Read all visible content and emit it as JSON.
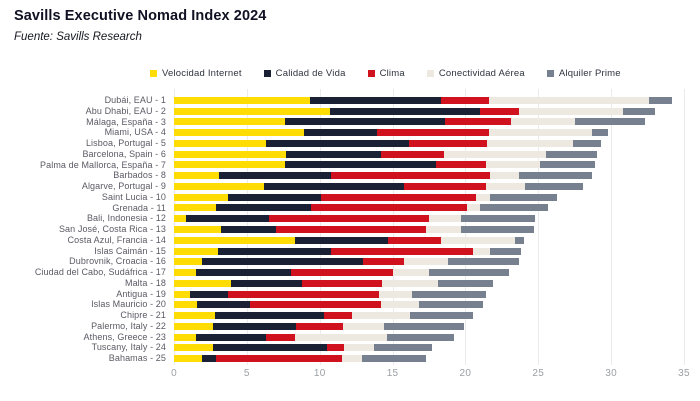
{
  "header": {
    "title": "Savills Executive Nomad Index 2024",
    "source": "Fuente: Savills Research"
  },
  "colors": {
    "background": "#ffffff",
    "gridline": "#ebebeb",
    "title_text": "#101223",
    "axis_tick_text": "#9aa0a6",
    "category_text": "#5a5a64"
  },
  "chart_data": {
    "type": "bar",
    "orientation": "horizontal",
    "stacked": true,
    "title": "Savills Executive Nomad Index 2024",
    "subtitle": "Fuente: Savills Research",
    "xlabel": "",
    "ylabel": "",
    "xlim": [
      0,
      35
    ],
    "x_ticks": [
      0,
      5,
      10,
      15,
      20,
      25,
      30,
      35
    ],
    "grid": true,
    "legend_position": "top",
    "categories": [
      "Dubái, EAU - 1",
      "Abu Dhabi, EAU - 2",
      "Málaga, España - 3",
      "Miami, USA - 4",
      "Lisboa, Portugal - 5",
      "Barcelona, Spain - 6",
      "Palma de Mallorca, España - 7",
      "Barbados - 8",
      "Algarve, Portugal - 9",
      "Saint Lucia - 10",
      "Grenada - 11",
      "Bali, Indonesia - 12",
      "San José, Costa Rica - 13",
      "Costa Azul, Francia - 14",
      "Islas Caimán - 15",
      "Dubrovnik, Croacia - 16",
      "Ciudad del Cabo, Sudáfrica - 17",
      "Malta - 18",
      "Antigua - 19",
      "Islas Mauricio - 20",
      "Chipre - 21",
      "Palermo, Italy - 22",
      "Athens, Greece - 23",
      "Tuscany, Italy - 24",
      "Bahamas - 25"
    ],
    "series": [
      {
        "name": "Velocidad Internet",
        "color": "#FFDD04",
        "values": [
          9.3,
          10.7,
          7.6,
          8.9,
          6.3,
          7.7,
          7.6,
          3.1,
          6.2,
          3.7,
          2.9,
          0.8,
          3.2,
          8.3,
          3.0,
          1.9,
          1.5,
          3.9,
          1.1,
          1.6,
          2.8,
          2.7,
          1.5,
          2.7,
          1.9
        ]
      },
      {
        "name": "Calidad de Vida",
        "color": "#1B2135",
        "values": [
          9.0,
          10.3,
          11.0,
          5.0,
          9.8,
          6.5,
          10.4,
          7.7,
          9.6,
          6.4,
          6.5,
          5.7,
          3.8,
          6.4,
          7.8,
          11.1,
          6.5,
          4.9,
          2.6,
          3.6,
          7.5,
          5.7,
          4.8,
          7.8,
          1.0
        ]
      },
      {
        "name": "Clima",
        "color": "#D0121E",
        "values": [
          3.3,
          2.7,
          4.5,
          7.7,
          5.4,
          4.3,
          3.4,
          10.9,
          5.6,
          10.6,
          10.7,
          11.0,
          10.3,
          3.6,
          9.7,
          2.8,
          7.0,
          5.5,
          10.4,
          9.0,
          1.9,
          3.2,
          2.0,
          1.2,
          8.6
        ]
      },
      {
        "name": "Conectividad Aérea",
        "color": "#EDE8E0",
        "values": [
          11.0,
          7.1,
          4.4,
          7.1,
          5.9,
          7.0,
          3.7,
          2.0,
          2.7,
          1.0,
          0.9,
          2.2,
          2.4,
          5.1,
          1.2,
          3.0,
          2.5,
          3.8,
          2.2,
          2.6,
          4.0,
          2.8,
          6.3,
          2.0,
          1.4
        ]
      },
      {
        "name": "Alquiler Prime",
        "color": "#76808F",
        "values": [
          1.6,
          2.2,
          4.8,
          1.1,
          1.9,
          3.5,
          3.8,
          5.0,
          4.0,
          4.6,
          4.7,
          5.1,
          5.0,
          0.6,
          2.1,
          4.9,
          5.5,
          3.8,
          5.1,
          4.4,
          4.3,
          5.5,
          4.6,
          4.0,
          4.4
        ]
      }
    ]
  }
}
